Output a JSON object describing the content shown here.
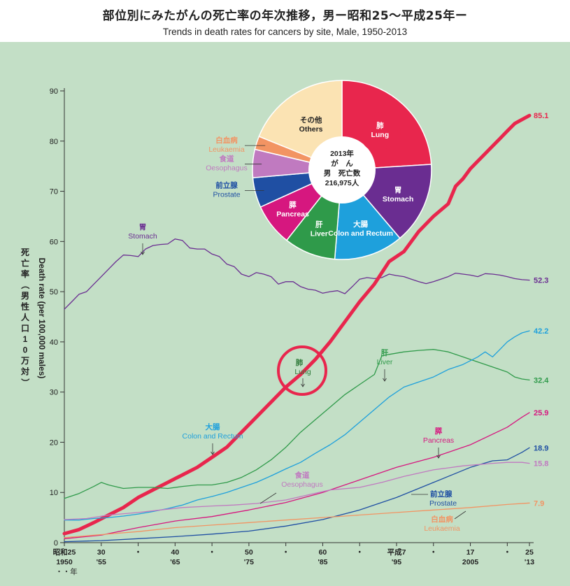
{
  "title_jp": "部位別にみたがんの死亡率の年次推移，男ー昭和25〜平成25年ー",
  "title_en": "Trends in death rates for cancers by site, Male, 1950-2013",
  "colors": {
    "background": "#c3dfc6",
    "stomach": "#6a2d91",
    "lung": "#e8264d",
    "liver": "#2f9a4a",
    "colon": "#1ea0dc",
    "pancreas": "#d6177f",
    "prostate": "#1f4fa3",
    "oesophagus": "#c07ac0",
    "leukaemia": "#f29463",
    "others": "#fbe3b3",
    "highlight": "#e8264d"
  },
  "chart_data": {
    "type": "line",
    "title": "Trends in death rates for cancers by site, Male, 1950-2013",
    "ylabel_jp": "死亡率（男性人口10万対）",
    "ylabel_en": "Death rate (per 100,000 males)",
    "xlabel": "年",
    "ylim": [
      0,
      90
    ],
    "xlim": [
      1950,
      2013
    ],
    "yticks": [
      0,
      10,
      20,
      30,
      40,
      50,
      60,
      70,
      80,
      90
    ],
    "xticks": [
      {
        "year": 1950,
        "label1": "昭和25",
        "label2": "1950"
      },
      {
        "year": 1955,
        "label1": "30",
        "label2": "'55"
      },
      {
        "year": 1960,
        "label1": "・",
        "label2": ""
      },
      {
        "year": 1965,
        "label1": "40",
        "label2": "'65"
      },
      {
        "year": 1970,
        "label1": "・",
        "label2": ""
      },
      {
        "year": 1975,
        "label1": "50",
        "label2": "'75"
      },
      {
        "year": 1980,
        "label1": "・",
        "label2": ""
      },
      {
        "year": 1985,
        "label1": "60",
        "label2": "'85"
      },
      {
        "year": 1990,
        "label1": "・",
        "label2": ""
      },
      {
        "year": 1995,
        "label1": "平成7",
        "label2": "'95"
      },
      {
        "year": 2000,
        "label1": "・",
        "label2": ""
      },
      {
        "year": 2005,
        "label1": "17",
        "label2": "2005"
      },
      {
        "year": 2010,
        "label1": "・",
        "label2": ""
      },
      {
        "year": 2013,
        "label1": "25",
        "label2": "'13"
      }
    ],
    "x_unit_label": "・・年",
    "series": [
      {
        "name": "Stomach",
        "name_jp": "胃",
        "end_label": "52.3",
        "points": [
          [
            1950,
            46.5
          ],
          [
            1951,
            48.0
          ],
          [
            1952,
            49.5
          ],
          [
            1953,
            50.0
          ],
          [
            1954,
            51.5
          ],
          [
            1955,
            53.0
          ],
          [
            1956,
            54.5
          ],
          [
            1957,
            56.0
          ],
          [
            1958,
            57.3
          ],
          [
            1959,
            57.2
          ],
          [
            1960,
            57.0
          ],
          [
            1961,
            58.5
          ],
          [
            1962,
            59.2
          ],
          [
            1963,
            59.4
          ],
          [
            1964,
            59.5
          ],
          [
            1965,
            60.5
          ],
          [
            1966,
            60.2
          ],
          [
            1967,
            58.7
          ],
          [
            1968,
            58.5
          ],
          [
            1969,
            58.5
          ],
          [
            1970,
            57.5
          ],
          [
            1971,
            57.0
          ],
          [
            1972,
            55.5
          ],
          [
            1973,
            55.0
          ],
          [
            1974,
            53.5
          ],
          [
            1975,
            53.0
          ],
          [
            1976,
            53.8
          ],
          [
            1977,
            53.5
          ],
          [
            1978,
            53.0
          ],
          [
            1979,
            51.5
          ],
          [
            1980,
            52.0
          ],
          [
            1981,
            52.0
          ],
          [
            1982,
            51.0
          ],
          [
            1983,
            50.5
          ],
          [
            1984,
            50.3
          ],
          [
            1985,
            49.7
          ],
          [
            1986,
            50.0
          ],
          [
            1987,
            50.2
          ],
          [
            1988,
            49.6
          ],
          [
            1989,
            51.0
          ],
          [
            1990,
            52.5
          ],
          [
            1991,
            52.8
          ],
          [
            1992,
            52.6
          ],
          [
            1993,
            52.8
          ],
          [
            1994,
            53.5
          ],
          [
            1995,
            53.2
          ],
          [
            1996,
            53.0
          ],
          [
            1997,
            52.5
          ],
          [
            1998,
            52.0
          ],
          [
            1999,
            51.6
          ],
          [
            2000,
            52.0
          ],
          [
            2001,
            52.5
          ],
          [
            2002,
            53.0
          ],
          [
            2003,
            53.7
          ],
          [
            2004,
            53.5
          ],
          [
            2005,
            53.3
          ],
          [
            2006,
            53.0
          ],
          [
            2007,
            53.6
          ],
          [
            2008,
            53.5
          ],
          [
            2009,
            53.3
          ],
          [
            2010,
            53.0
          ],
          [
            2011,
            52.6
          ],
          [
            2012,
            52.4
          ],
          [
            2013,
            52.3
          ]
        ]
      },
      {
        "name": "Lung",
        "name_jp": "肺",
        "end_label": "85.1",
        "points": [
          [
            1950,
            1.8
          ],
          [
            1952,
            2.6
          ],
          [
            1954,
            4.0
          ],
          [
            1956,
            5.5
          ],
          [
            1958,
            7.0
          ],
          [
            1960,
            9.0
          ],
          [
            1962,
            10.5
          ],
          [
            1964,
            12.0
          ],
          [
            1966,
            13.5
          ],
          [
            1968,
            15.0
          ],
          [
            1970,
            17.0
          ],
          [
            1972,
            19.0
          ],
          [
            1974,
            22.0
          ],
          [
            1976,
            25.0
          ],
          [
            1978,
            28.0
          ],
          [
            1980,
            31.0
          ],
          [
            1982,
            33.5
          ],
          [
            1984,
            36.5
          ],
          [
            1986,
            40.0
          ],
          [
            1988,
            44.0
          ],
          [
            1990,
            48.0
          ],
          [
            1992,
            51.5
          ],
          [
            1994,
            56.0
          ],
          [
            1996,
            58.0
          ],
          [
            1998,
            62.0
          ],
          [
            2000,
            65.0
          ],
          [
            2002,
            67.5
          ],
          [
            2003,
            71.0
          ],
          [
            2004,
            72.5
          ],
          [
            2005,
            74.5
          ],
          [
            2006,
            76.0
          ],
          [
            2007,
            77.5
          ],
          [
            2008,
            79.0
          ],
          [
            2009,
            80.5
          ],
          [
            2010,
            82.0
          ],
          [
            2011,
            83.5
          ],
          [
            2012,
            84.3
          ],
          [
            2013,
            85.1
          ]
        ]
      },
      {
        "name": "Liver",
        "name_jp": "肝",
        "end_label": "32.4",
        "points": [
          [
            1950,
            8.8
          ],
          [
            1952,
            9.8
          ],
          [
            1954,
            11.2
          ],
          [
            1955,
            12.0
          ],
          [
            1956,
            11.5
          ],
          [
            1958,
            10.8
          ],
          [
            1960,
            11.0
          ],
          [
            1962,
            11.0
          ],
          [
            1964,
            10.8
          ],
          [
            1966,
            11.2
          ],
          [
            1968,
            11.5
          ],
          [
            1970,
            11.5
          ],
          [
            1972,
            12.0
          ],
          [
            1974,
            13.0
          ],
          [
            1976,
            14.5
          ],
          [
            1978,
            16.5
          ],
          [
            1980,
            19.0
          ],
          [
            1982,
            22.0
          ],
          [
            1984,
            24.5
          ],
          [
            1986,
            27.0
          ],
          [
            1988,
            29.5
          ],
          [
            1990,
            31.5
          ],
          [
            1992,
            33.5
          ],
          [
            1993,
            37.2
          ],
          [
            1994,
            37.5
          ],
          [
            1996,
            38.0
          ],
          [
            1998,
            38.3
          ],
          [
            2000,
            38.5
          ],
          [
            2002,
            38.0
          ],
          [
            2004,
            37.0
          ],
          [
            2006,
            36.0
          ],
          [
            2008,
            35.0
          ],
          [
            2010,
            34.0
          ],
          [
            2011,
            33.0
          ],
          [
            2012,
            32.6
          ],
          [
            2013,
            32.4
          ]
        ]
      },
      {
        "name": "Colon and Rectum",
        "name_jp": "大腸",
        "end_label": "42.2",
        "points": [
          [
            1950,
            4.5
          ],
          [
            1952,
            4.5
          ],
          [
            1954,
            4.8
          ],
          [
            1956,
            5.0
          ],
          [
            1958,
            5.3
          ],
          [
            1960,
            5.7
          ],
          [
            1962,
            6.2
          ],
          [
            1964,
            6.8
          ],
          [
            1966,
            7.5
          ],
          [
            1968,
            8.5
          ],
          [
            1970,
            9.2
          ],
          [
            1972,
            10.0
          ],
          [
            1974,
            11.0
          ],
          [
            1976,
            12.0
          ],
          [
            1978,
            13.3
          ],
          [
            1980,
            14.7
          ],
          [
            1982,
            16.0
          ],
          [
            1984,
            17.8
          ],
          [
            1986,
            19.5
          ],
          [
            1988,
            21.5
          ],
          [
            1990,
            24.0
          ],
          [
            1992,
            26.5
          ],
          [
            1994,
            29.0
          ],
          [
            1996,
            31.0
          ],
          [
            1998,
            32.0
          ],
          [
            2000,
            33.0
          ],
          [
            2002,
            34.5
          ],
          [
            2004,
            35.5
          ],
          [
            2006,
            37.0
          ],
          [
            2007,
            38.0
          ],
          [
            2008,
            37.0
          ],
          [
            2009,
            38.5
          ],
          [
            2010,
            40.0
          ],
          [
            2011,
            41.0
          ],
          [
            2012,
            41.8
          ],
          [
            2013,
            42.2
          ]
        ]
      },
      {
        "name": "Pancreas",
        "name_jp": "膵",
        "end_label": "25.9",
        "points": [
          [
            1950,
            0.8
          ],
          [
            1955,
            1.5
          ],
          [
            1960,
            3.0
          ],
          [
            1965,
            4.3
          ],
          [
            1970,
            5.2
          ],
          [
            1975,
            6.5
          ],
          [
            1980,
            8.0
          ],
          [
            1985,
            10.0
          ],
          [
            1990,
            12.5
          ],
          [
            1995,
            15.0
          ],
          [
            2000,
            17.0
          ],
          [
            2005,
            19.5
          ],
          [
            2010,
            23.0
          ],
          [
            2012,
            25.0
          ],
          [
            2013,
            25.9
          ]
        ]
      },
      {
        "name": "Prostate",
        "name_jp": "前立腺",
        "end_label": "18.9",
        "points": [
          [
            1950,
            0.2
          ],
          [
            1955,
            0.4
          ],
          [
            1960,
            0.8
          ],
          [
            1965,
            1.2
          ],
          [
            1970,
            1.7
          ],
          [
            1975,
            2.3
          ],
          [
            1980,
            3.3
          ],
          [
            1985,
            4.6
          ],
          [
            1990,
            6.5
          ],
          [
            1995,
            9.0
          ],
          [
            2000,
            12.0
          ],
          [
            2005,
            15.0
          ],
          [
            2008,
            16.3
          ],
          [
            2010,
            16.5
          ],
          [
            2012,
            18.0
          ],
          [
            2013,
            18.9
          ]
        ]
      },
      {
        "name": "Oesophagus",
        "name_jp": "食道",
        "end_label": "15.8",
        "points": [
          [
            1950,
            4.6
          ],
          [
            1953,
            4.8
          ],
          [
            1956,
            5.5
          ],
          [
            1960,
            6.0
          ],
          [
            1963,
            6.5
          ],
          [
            1966,
            7.0
          ],
          [
            1970,
            7.3
          ],
          [
            1973,
            7.5
          ],
          [
            1976,
            7.8
          ],
          [
            1980,
            8.5
          ],
          [
            1983,
            9.5
          ],
          [
            1986,
            10.5
          ],
          [
            1990,
            11.0
          ],
          [
            1993,
            12.0
          ],
          [
            1996,
            13.2
          ],
          [
            2000,
            14.5
          ],
          [
            2004,
            15.3
          ],
          [
            2008,
            15.8
          ],
          [
            2010,
            16.0
          ],
          [
            2012,
            16.0
          ],
          [
            2013,
            15.8
          ]
        ]
      },
      {
        "name": "Leukaemia",
        "name_jp": "白血病",
        "end_label": "7.9",
        "points": [
          [
            1950,
            1.0
          ],
          [
            1955,
            1.6
          ],
          [
            1960,
            2.2
          ],
          [
            1965,
            3.0
          ],
          [
            1970,
            3.5
          ],
          [
            1975,
            4.0
          ],
          [
            1980,
            4.5
          ],
          [
            1985,
            5.0
          ],
          [
            1990,
            5.5
          ],
          [
            1995,
            6.0
          ],
          [
            2000,
            6.5
          ],
          [
            2005,
            7.0
          ],
          [
            2010,
            7.6
          ],
          [
            2013,
            7.9
          ]
        ]
      }
    ],
    "annotations": {
      "stomach": {
        "jp": "胃",
        "en": "Stomach"
      },
      "lung": {
        "jp": "肺",
        "en": "Lung"
      },
      "liver": {
        "jp": "肝",
        "en": "Liver"
      },
      "colon": {
        "jp": "大腸",
        "en": "Colon and Rectum"
      },
      "pancreas": {
        "jp": "膵",
        "en": "Pancreas"
      },
      "prostate": {
        "jp": "前立腺",
        "en": "Prostate"
      },
      "oesophagus": {
        "jp": "食道",
        "en": "Oesophagus"
      },
      "leukaemia": {
        "jp": "白血病",
        "en": "Leukaemia"
      }
    },
    "pie": {
      "type": "pie",
      "center_text": [
        "2013年",
        "が　ん",
        "男　死亡数",
        "216,975人"
      ],
      "slices": [
        {
          "key": "lung",
          "jp": "肺",
          "en": "Lung",
          "value": 24.0
        },
        {
          "key": "stomach",
          "jp": "胃",
          "en": "Stomach",
          "value": 14.8
        },
        {
          "key": "colon",
          "jp": "大腸",
          "en": "Colon and Rectum",
          "value": 12.5
        },
        {
          "key": "liver",
          "jp": "肝",
          "en": "Liver",
          "value": 9.3
        },
        {
          "key": "pancreas",
          "jp": "膵",
          "en": "Pancreas",
          "value": 7.6
        },
        {
          "key": "prostate",
          "jp": "前立腺",
          "en": "Prostate",
          "value": 5.4
        },
        {
          "key": "oesophagus",
          "jp": "食道",
          "en": "Oesophagus",
          "value": 5.1
        },
        {
          "key": "leukaemia",
          "jp": "白血病",
          "en": "Leukaemia",
          "value": 2.4
        },
        {
          "key": "others",
          "jp": "その他",
          "en": "Others",
          "value": 18.9
        }
      ]
    }
  }
}
